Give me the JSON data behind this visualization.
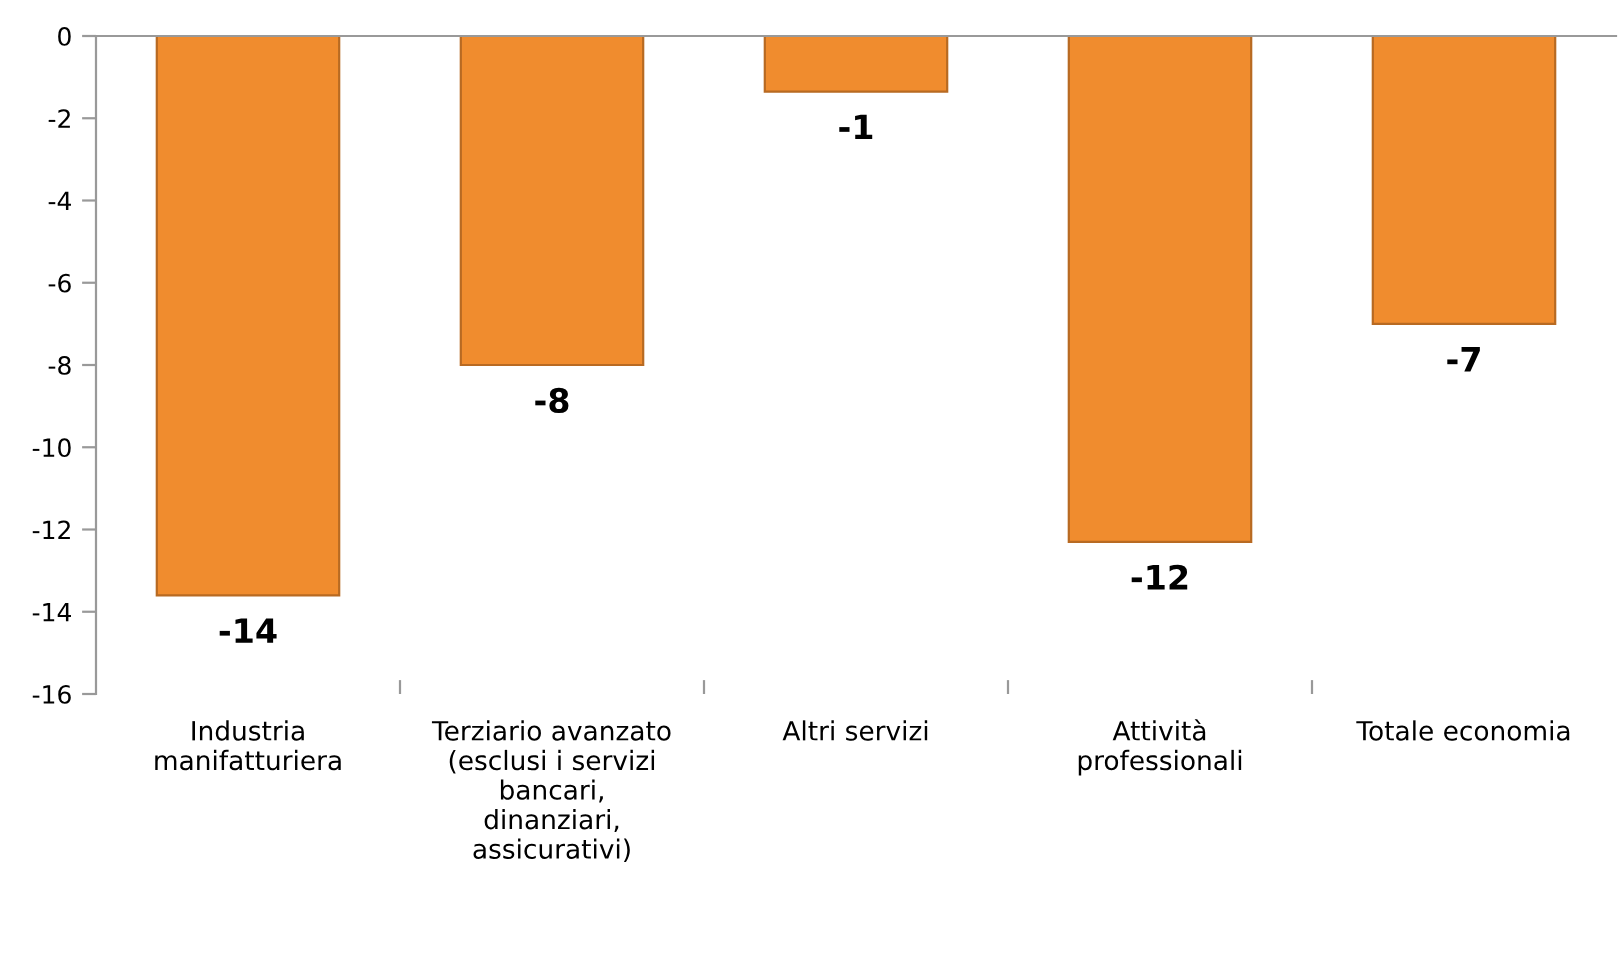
{
  "chart_data": {
    "type": "bar",
    "categories": [
      "Industria\nmanifatturiera",
      "Terziario avanzato\n(esclusi i servizi\nbancari,\ndinanziari,\nassicurativi)",
      "Altri servizi",
      "Attività\nprofessionali",
      "Totale economia"
    ],
    "values": [
      -13.6,
      -8.0,
      -1.35,
      -12.3,
      -7.0
    ],
    "value_labels": [
      "-14",
      "-8",
      "-1",
      "-12",
      "-7"
    ],
    "color": "#f08c2e",
    "ylim": [
      -16,
      0
    ],
    "yticks": [
      -16,
      -14,
      -12,
      -10,
      -8,
      -6,
      -4,
      -2,
      0
    ],
    "grid": false,
    "legend": false
  }
}
